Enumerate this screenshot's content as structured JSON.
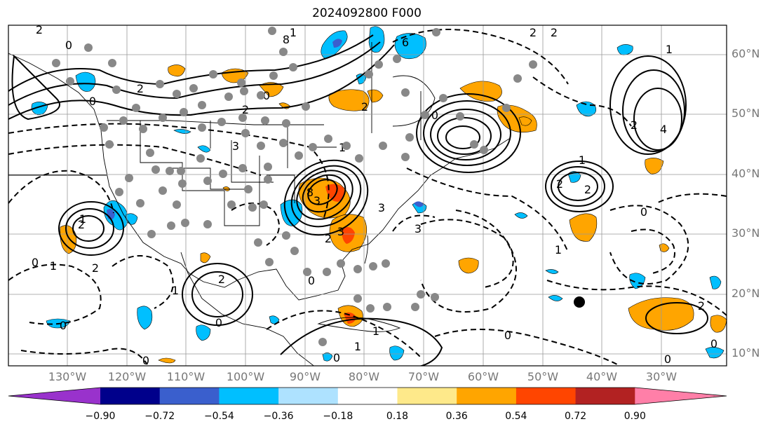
{
  "title": "2024092800 F000",
  "map": {
    "projection": "Plate Carree",
    "extent_lon": [
      -140,
      -19
    ],
    "extent_lat": [
      7.5,
      65
    ],
    "grid": true,
    "features": [
      "coastlines",
      "country borders",
      "US state borders"
    ],
    "marker": {
      "label": "black dot",
      "lon": -45,
      "lat": 18.5
    }
  },
  "lon_labels": [
    "130°W",
    "120°W",
    "110°W",
    "100°W",
    "90°W",
    "80°W",
    "70°W",
    "60°W",
    "50°W",
    "40°W",
    "30°W"
  ],
  "lat_labels": [
    "60°N",
    "50°N",
    "40°N",
    "30°N",
    "20°N",
    "10°N"
  ],
  "contour_labels": [
    "2",
    "1",
    "0",
    "2",
    "0",
    "6",
    "1",
    "2",
    "2",
    "0",
    "8",
    "2",
    "2",
    "0",
    "1",
    "4",
    "2",
    "1",
    "2",
    "2",
    "3",
    "1",
    "3",
    "3",
    "8",
    "3",
    "2",
    "3",
    "2",
    "1",
    "0",
    "1",
    "0",
    "2",
    "0",
    "2",
    "0",
    "1",
    "0",
    "0",
    "1",
    "1",
    "0",
    "2",
    "0",
    "1",
    "0",
    "0"
  ],
  "colorbar": {
    "ticks": [
      "−0.90",
      "−0.72",
      "−0.54",
      "−0.36",
      "−0.18",
      "0.18",
      "0.36",
      "0.54",
      "0.72",
      "0.90"
    ],
    "colors": [
      "#9932cc",
      "#00008b",
      "#3a5fcd",
      "#00bfff",
      "#aee2ff",
      "#ffffff",
      "#fee98a",
      "#ffa500",
      "#ff4500",
      "#b22222",
      "#ff7fa8"
    ],
    "extend": "both"
  }
}
